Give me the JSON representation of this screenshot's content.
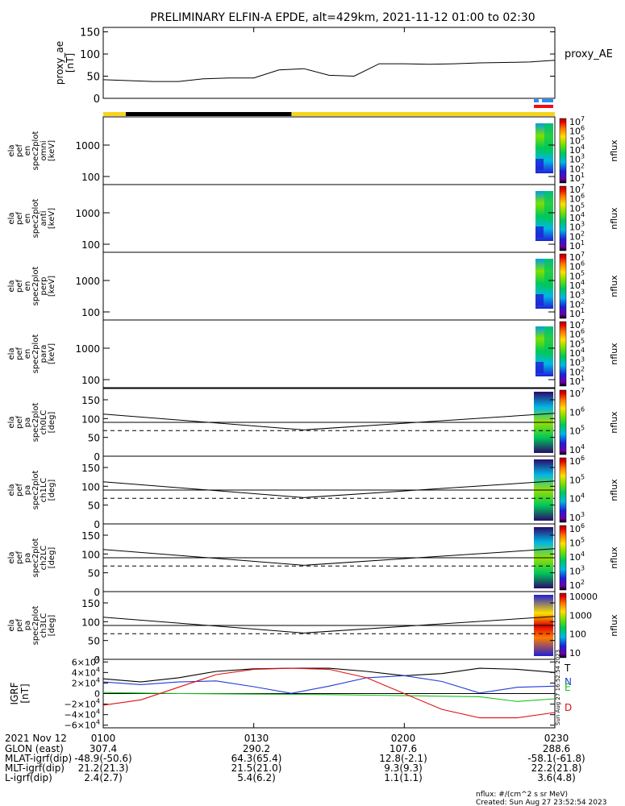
{
  "title": "PRELIMINARY ELFIN-A EPDE, alt=429km, 2021-11-12 01:00 to 02:30",
  "colors": {
    "daylight_bar": "#f7d51d",
    "shadow_bar": "#000000",
    "science_zone_blue": "#1e90ff",
    "science_zone_red": "#ee1111",
    "grf_T": "#000000",
    "grf_N": "#1f3bd6",
    "grf_E": "#19c219",
    "grf_D": "#e01010"
  },
  "chart_data": [
    {
      "type": "line",
      "name": "proxy_ae",
      "ylabel": [
        "proxy_ae",
        "[nT]"
      ],
      "legend": "proxy_AE",
      "ylim": [
        0,
        160
      ],
      "yticks": [
        "150",
        "100",
        "50",
        "0"
      ],
      "x_minutes": [
        0,
        5,
        10,
        15,
        20,
        25,
        30,
        35,
        40,
        45,
        50,
        55,
        60,
        65,
        70,
        75,
        80,
        85,
        90
      ],
      "values": [
        42,
        40,
        38,
        38,
        44,
        46,
        46,
        64,
        67,
        52,
        50,
        78,
        78,
        77,
        78,
        80,
        81,
        82,
        86
      ]
    },
    {
      "type": "heatmap",
      "ylabel": [
        "ela",
        "pef",
        "en",
        "spec2plot",
        "omni",
        "[keV]"
      ],
      "yscale": "log",
      "yticks": [
        "1000",
        "100"
      ],
      "zlabel": "nflux",
      "zticks": [
        "10^7",
        "10^6",
        "10^5",
        "10^4",
        "10^3",
        "10^2",
        "10^1"
      ]
    },
    {
      "type": "heatmap",
      "ylabel": [
        "ela",
        "pef",
        "en",
        "spec2plot",
        "anti",
        "[keV]"
      ],
      "yscale": "log",
      "yticks": [
        "1000",
        "100"
      ],
      "zlabel": "nflux",
      "zticks": [
        "10^7",
        "10^6",
        "10^5",
        "10^4",
        "10^3",
        "10^2",
        "10^1"
      ]
    },
    {
      "type": "heatmap",
      "ylabel": [
        "ela",
        "pef",
        "en",
        "spec2plot",
        "perp",
        "[keV]"
      ],
      "yscale": "log",
      "yticks": [
        "1000",
        "100"
      ],
      "zlabel": "nflux",
      "zticks": [
        "10^7",
        "10^6",
        "10^5",
        "10^4",
        "10^3",
        "10^2",
        "10^1"
      ]
    },
    {
      "type": "heatmap",
      "ylabel": [
        "ela",
        "pef",
        "en",
        "spec2plot",
        "para",
        "[keV]"
      ],
      "yscale": "log",
      "yticks": [
        "1000",
        "100"
      ],
      "zlabel": "nflux",
      "zticks": [
        "10^7",
        "10^6",
        "10^5",
        "10^4",
        "10^3",
        "10^2",
        "10^1"
      ]
    },
    {
      "type": "heatmap",
      "ylabel": [
        "ela",
        "pef",
        "pa",
        "spec2plot",
        "ch0LC",
        "[deg]"
      ],
      "ylim": [
        0,
        180
      ],
      "yticks": [
        "150",
        "100",
        "50",
        "0"
      ],
      "zlabel": "nflux",
      "zticks": [
        "10^7",
        "10^6",
        "10^5",
        "10^4"
      ]
    },
    {
      "type": "heatmap",
      "ylabel": [
        "ela",
        "pef",
        "pa",
        "spec2plot",
        "ch1LC",
        "[deg]"
      ],
      "ylim": [
        0,
        180
      ],
      "yticks": [
        "150",
        "100",
        "50",
        "0"
      ],
      "zlabel": "nflux",
      "zticks": [
        "10^6",
        "10^5",
        "10^4",
        "10^3"
      ]
    },
    {
      "type": "heatmap",
      "ylabel": [
        "ela",
        "pef",
        "pa",
        "spec2plot",
        "ch2LC",
        "[deg]"
      ],
      "ylim": [
        0,
        180
      ],
      "yticks": [
        "150",
        "100",
        "50",
        "0"
      ],
      "zlabel": "nflux",
      "zticks": [
        "10^6",
        "10^5",
        "10^4",
        "10^3",
        "10^2"
      ]
    },
    {
      "type": "heatmap",
      "ylabel": [
        "ela",
        "pef",
        "pa",
        "spec2plot",
        "ch3LC",
        "[deg]"
      ],
      "ylim": [
        0,
        180
      ],
      "yticks": [
        "150",
        "100",
        "50",
        "0"
      ],
      "zlabel": "nflux",
      "zticks": [
        "10000",
        "1000",
        "100",
        "10"
      ]
    },
    {
      "type": "line",
      "name": "IGRF",
      "ylabel": [
        "IGRF",
        "[nT]"
      ],
      "ylim": [
        -65000,
        65000
      ],
      "yticks": [
        "6×10^4",
        "4×10^4",
        "2×10^4",
        "0",
        "−2×10^4",
        "−4×10^4",
        "−6×10^4"
      ],
      "x_minutes": [
        0,
        7.5,
        15,
        22.5,
        30,
        37.5,
        45,
        52.5,
        60,
        67.5,
        75,
        82.5,
        90
      ],
      "series": [
        {
          "name": "T",
          "values": [
            28000,
            22000,
            30000,
            42000,
            47000,
            48000,
            48000,
            42000,
            34000,
            38000,
            48000,
            46000,
            40000
          ]
        },
        {
          "name": "N",
          "values": [
            22000,
            17000,
            22000,
            24000,
            13000,
            500,
            14000,
            30000,
            34000,
            23000,
            1000,
            12000,
            14000
          ]
        },
        {
          "name": "E",
          "values": [
            2000,
            1000,
            0,
            -500,
            -1000,
            -1500,
            -2000,
            -3000,
            -4000,
            -5000,
            -6000,
            -15000,
            -10000
          ]
        },
        {
          "name": "D",
          "values": [
            -22000,
            -12000,
            12000,
            36000,
            46000,
            48000,
            46000,
            30000,
            0,
            -30000,
            -46000,
            -46000,
            -36000
          ]
        }
      ]
    }
  ],
  "xaxis": {
    "date_label": "2021 Nov 12",
    "ticks": [
      "0100",
      "0130",
      "0200",
      "0230"
    ],
    "rows": [
      {
        "label": "GLON (east)",
        "values": [
          "307.4",
          "290.2",
          "107.6",
          "288.6"
        ]
      },
      {
        "label": "MLAT-igrf(dip)",
        "values": [
          "-48.9(-50.6)",
          "64.3(65.4)",
          "12.8(-2.1)",
          "-58.1(-61.8)"
        ]
      },
      {
        "label": "MLT-igrf(dip)",
        "values": [
          "21.2(21.3)",
          "21.5(21.0)",
          "9.3(9.3)",
          "22.2(21.8)"
        ]
      },
      {
        "label": "L-igrf(dip)",
        "values": [
          "2.4(2.7)",
          "5.4(6.2)",
          "1.1(1.1)",
          "3.6(4.8)"
        ]
      }
    ]
  },
  "footer": {
    "units": "nflux: #/(cm^2 s sr MeV)",
    "created": "Created: Sun Aug 27 23:52:54 2023",
    "stamp": "Sun Aug 27 16:52:54 2023"
  }
}
